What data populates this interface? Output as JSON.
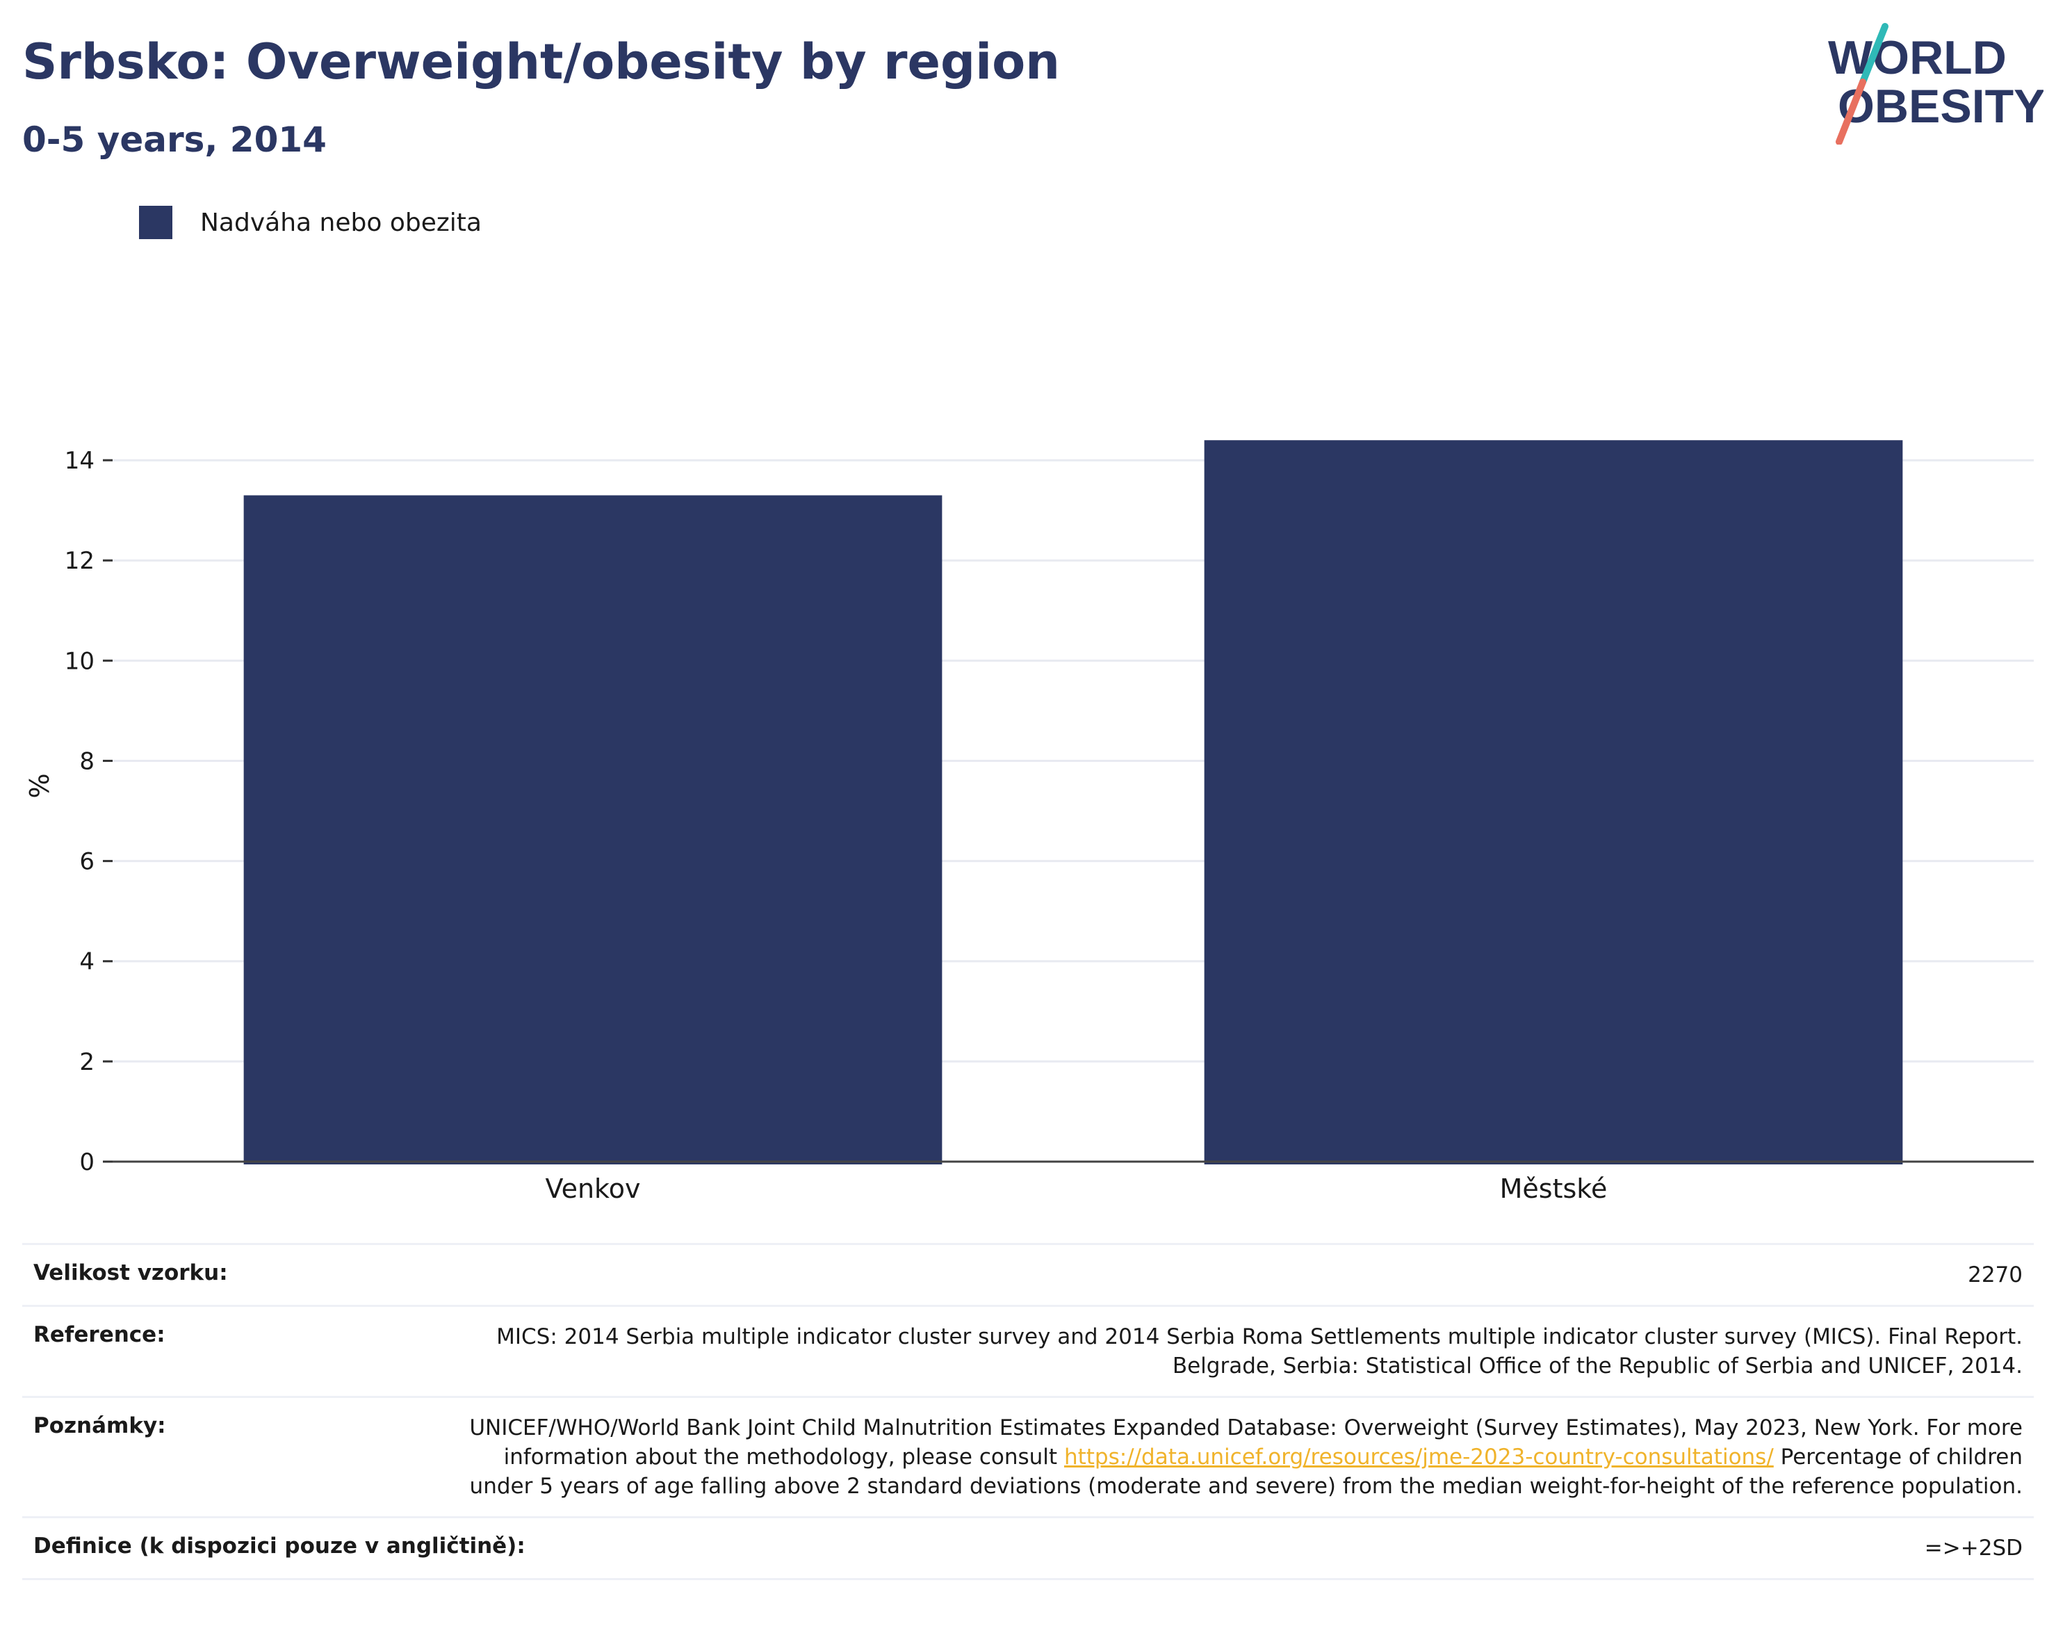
{
  "header": {
    "title": "Srbsko: Overweight/obesity by region",
    "subtitle": "0-5 years, 2014"
  },
  "logo": {
    "line1": "WORLD",
    "line2": "OBESITY",
    "colors": {
      "text": "#2b3763",
      "slash_top": "#2fb9b7",
      "slash_bottom": "#e8705f"
    }
  },
  "legend": {
    "label": "Nadváha nebo obezita",
    "color": "#2b3763"
  },
  "chart_data": {
    "type": "bar",
    "categories": [
      "Venkov",
      "Městské"
    ],
    "series": [
      {
        "name": "Nadváha nebo obezita",
        "values": [
          13.3,
          14.4
        ],
        "color": "#2b3763"
      }
    ],
    "ylabel": "%",
    "xlabel": "",
    "ylim": [
      0,
      15
    ],
    "yticks": [
      0,
      2,
      4,
      6,
      8,
      10,
      12,
      14
    ],
    "grid": true,
    "legend_position": "top-left"
  },
  "info_table": {
    "sample_label": "Velikost vzorku:",
    "sample_value": "2270",
    "reference_label": "Reference:",
    "reference_value": "MICS: 2014 Serbia multiple indicator cluster survey and 2014 Serbia Roma Settlements multiple indicator cluster survey (MICS). Final Report. Belgrade, Serbia: Statistical Office of the Republic of Serbia and UNICEF, 2014.",
    "notes_label": "Poznámky:",
    "notes_text_before": "UNICEF/WHO/World Bank Joint Child Malnutrition Estimates Expanded Database: Overweight (Survey Estimates), May 2023, New York. For more information about the methodology, please consult ",
    "notes_link": "https://data.unicef.org/resources/jme-2023-country-consultations/",
    "notes_text_after": " Percentage of children under 5 years of age falling above 2 standard deviations (moderate and severe) from the median weight-for-height of the reference population.",
    "definition_label": "Definice (k dispozici pouze v angličtině):",
    "definition_value": "=>+2SD"
  }
}
